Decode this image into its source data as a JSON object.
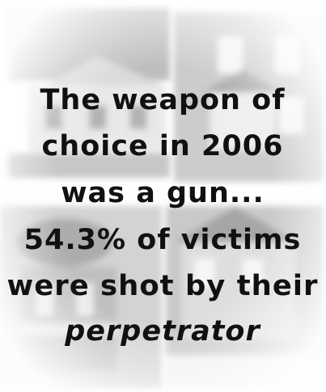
{
  "text": {
    "lines": [
      "The weapon of",
      "choice in 2006",
      "was a gun...",
      "54.3% of victims",
      "were shot by their",
      "perpetrator"
    ]
  }
}
